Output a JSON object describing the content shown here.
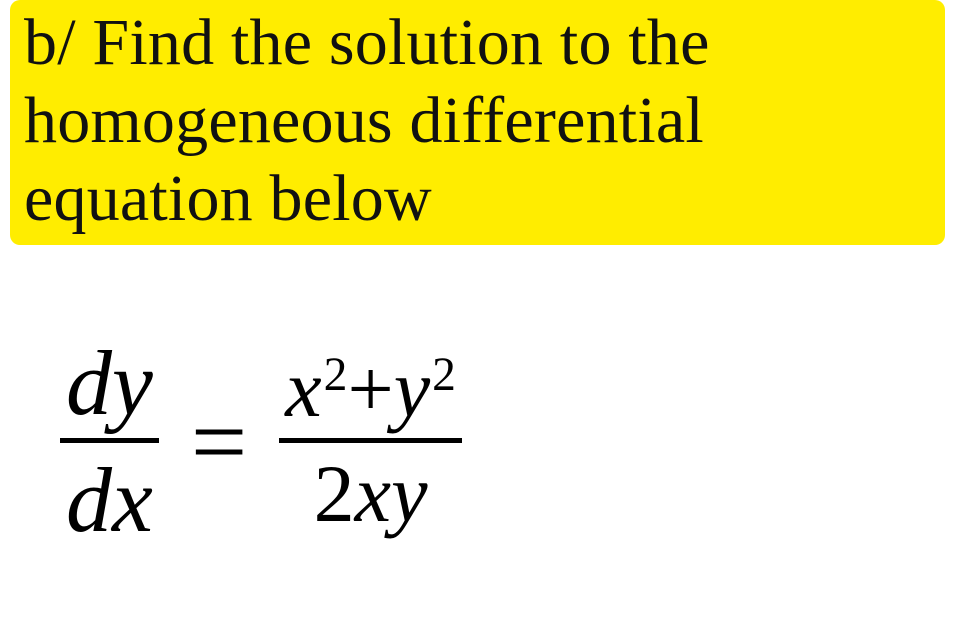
{
  "colors": {
    "highlight": "#ffed00",
    "text": "#111111",
    "background": "#ffffff",
    "rule": "#000000"
  },
  "problem_text": "b/ Find the solution to the homogeneous differential equation below",
  "equation": {
    "lhs": {
      "numerator": "dy",
      "denominator": "dx"
    },
    "operator": "=",
    "rhs": {
      "numerator_parts": {
        "t1": "x",
        "e1": "2",
        "plus": "+",
        "t2": "y",
        "e2": "2"
      },
      "denominator_parts": {
        "c": "2",
        "v1": "x",
        "v2": "y"
      }
    }
  }
}
